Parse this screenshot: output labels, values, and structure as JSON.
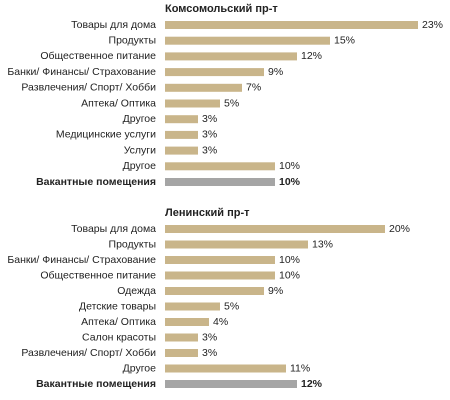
{
  "chart_data": [
    {
      "type": "bar",
      "title": "Комсомольский пр-т",
      "categories": [
        "Товары для дома",
        "Продукты",
        "Общественное питание",
        "Банки/ Финансы/ Страхование",
        "Развлечения/ Спорт/ Хобби",
        "Аптека/ Оптика",
        "Другое",
        "Медицинские услуги",
        "Услуги",
        "Другое",
        "Вакантные помещения"
      ],
      "values": [
        23,
        15,
        12,
        9,
        7,
        5,
        3,
        3,
        3,
        10,
        10
      ],
      "value_labels": [
        "23%",
        "15%",
        "12%",
        "9%",
        "7%",
        "5%",
        "3%",
        "3%",
        "3%",
        "10%",
        "10%"
      ],
      "colors": [
        "#c9b58a",
        "#c9b58a",
        "#c9b58a",
        "#c9b58a",
        "#c9b58a",
        "#c9b58a",
        "#c9b58a",
        "#c9b58a",
        "#c9b58a",
        "#c9b58a",
        "#a5a5a5"
      ]
    },
    {
      "type": "bar",
      "title": "Ленинский пр-т",
      "categories": [
        "Товары для дома",
        "Продукты",
        "Банки/ Финансы/ Страхование",
        "Общественное питание",
        "Одежда",
        "Детские товары",
        "Аптека/ Оптика",
        "Салон красоты",
        "Развлечения/ Спорт/ Хобби",
        "Другое",
        "Вакантные помещения"
      ],
      "values": [
        20,
        13,
        10,
        10,
        9,
        5,
        4,
        3,
        3,
        11,
        12
      ],
      "value_labels": [
        "20%",
        "13%",
        "10%",
        "10%",
        "9%",
        "5%",
        "4%",
        "3%",
        "3%",
        "11%",
        "12%"
      ],
      "colors": [
        "#c9b58a",
        "#c9b58a",
        "#c9b58a",
        "#c9b58a",
        "#c9b58a",
        "#c9b58a",
        "#c9b58a",
        "#c9b58a",
        "#c9b58a",
        "#c9b58a",
        "#a5a5a5"
      ]
    }
  ]
}
